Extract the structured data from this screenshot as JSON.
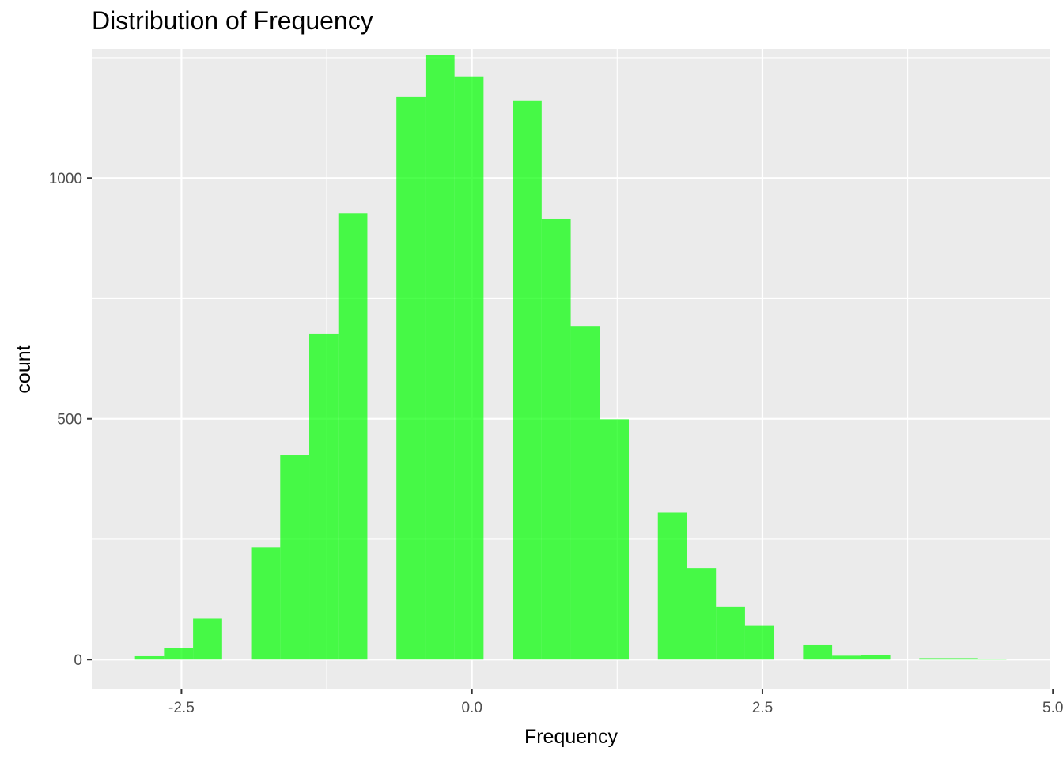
{
  "chart_data": {
    "type": "bar",
    "title": "Distribution of Frequency",
    "xlabel": "Frequency",
    "ylabel": "count",
    "xlim": [
      -3.272,
      4.978
    ],
    "ylim": [
      -62,
      1268
    ],
    "x_ticks": [
      -2.5,
      0.0,
      2.5,
      5.0
    ],
    "x_tick_labels": [
      "-2.5",
      "0.0",
      "2.5",
      "5.0"
    ],
    "y_ticks": [
      0,
      500,
      1000
    ],
    "y_tick_labels": [
      "0",
      "500",
      "1000"
    ],
    "grid": true,
    "bar_color": "#00ff00",
    "bar_opacity": 0.7,
    "panel_background": "#ebebeb",
    "bin_width": 0.25,
    "bins": [
      {
        "x0": -2.9,
        "x1": -2.65,
        "count": 7
      },
      {
        "x0": -2.65,
        "x1": -2.4,
        "count": 25
      },
      {
        "x0": -2.4,
        "x1": -2.15,
        "count": 85
      },
      {
        "x0": -2.15,
        "x1": -1.9,
        "count": 0
      },
      {
        "x0": -1.9,
        "x1": -1.65,
        "count": 233
      },
      {
        "x0": -1.65,
        "x1": -1.4,
        "count": 424
      },
      {
        "x0": -1.4,
        "x1": -1.15,
        "count": 677
      },
      {
        "x0": -1.15,
        "x1": -0.9,
        "count": 926
      },
      {
        "x0": -0.9,
        "x1": -0.65,
        "count": 0
      },
      {
        "x0": -0.65,
        "x1": -0.4,
        "count": 1168
      },
      {
        "x0": -0.4,
        "x1": -0.15,
        "count": 1256
      },
      {
        "x0": -0.15,
        "x1": 0.1,
        "count": 1211
      },
      {
        "x0": 0.1,
        "x1": 0.35,
        "count": 0
      },
      {
        "x0": 0.35,
        "x1": 0.6,
        "count": 1160
      },
      {
        "x0": 0.6,
        "x1": 0.85,
        "count": 915
      },
      {
        "x0": 0.85,
        "x1": 1.1,
        "count": 693
      },
      {
        "x0": 1.1,
        "x1": 1.35,
        "count": 499
      },
      {
        "x0": 1.35,
        "x1": 1.6,
        "count": 0
      },
      {
        "x0": 1.6,
        "x1": 1.85,
        "count": 305
      },
      {
        "x0": 1.85,
        "x1": 2.1,
        "count": 189
      },
      {
        "x0": 2.1,
        "x1": 2.35,
        "count": 109
      },
      {
        "x0": 2.35,
        "x1": 2.6,
        "count": 70
      },
      {
        "x0": 2.6,
        "x1": 2.85,
        "count": 0
      },
      {
        "x0": 2.85,
        "x1": 3.1,
        "count": 30
      },
      {
        "x0": 3.1,
        "x1": 3.35,
        "count": 8
      },
      {
        "x0": 3.35,
        "x1": 3.6,
        "count": 10
      },
      {
        "x0": 3.6,
        "x1": 3.85,
        "count": 0
      },
      {
        "x0": 3.85,
        "x1": 4.1,
        "count": 3
      },
      {
        "x0": 4.1,
        "x1": 4.35,
        "count": 3
      },
      {
        "x0": 4.35,
        "x1": 4.6,
        "count": 2
      }
    ]
  }
}
